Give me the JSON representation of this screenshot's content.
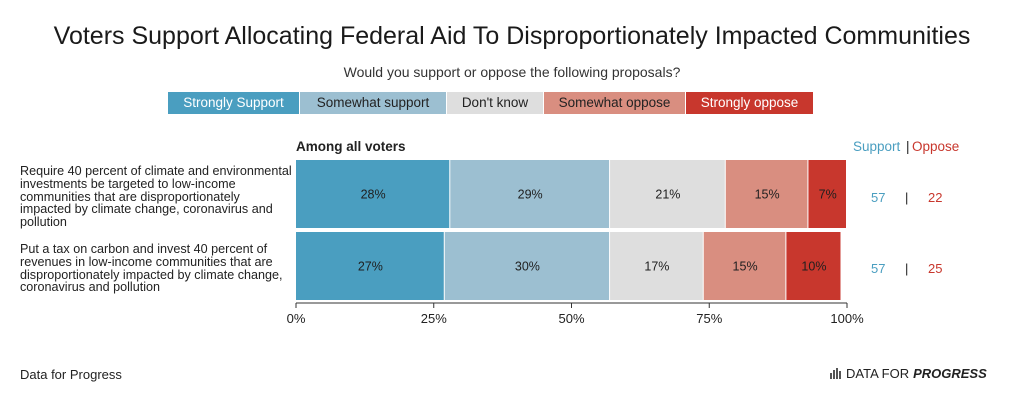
{
  "title": "Voters Support Allocating Federal Aid To Disproportionately Impacted Communities",
  "subtitle": "Would you support or oppose the following proposals?",
  "section_title": "Among all voters",
  "summary_headers": {
    "support": "Support",
    "separator": "|",
    "oppose": "Oppose"
  },
  "legend": [
    {
      "label": "Strongly Support",
      "color": "#4a9ec0"
    },
    {
      "label": "Somewhat support",
      "color": "#9cbfd1"
    },
    {
      "label": "Don't know",
      "color": "#dedede"
    },
    {
      "label": "Somewhat oppose",
      "color": "#d98e80"
    },
    {
      "label": "Strongly oppose",
      "color": "#c8372d"
    }
  ],
  "colors": {
    "support": "#4a9ec0",
    "oppose": "#c8372d",
    "axis": "#333333"
  },
  "rows": [
    {
      "label": "Require 40 percent of climate and environmental investments be targeted to low-income communities that are disproportionately impacted by climate change, coronavirus and pollution",
      "support": "57",
      "oppose": "22"
    },
    {
      "label": "Put a tax on carbon and invest 40 percent of revenues in low-income communities that are disproportionately impacted by climate change, coronavirus and pollution",
      "support": "57",
      "oppose": "25"
    }
  ],
  "source": "Data for Progress",
  "brand": {
    "prefix": "DATA FOR",
    "emphasis": "PROGRESS"
  },
  "chart_data": {
    "type": "bar",
    "orientation": "horizontal",
    "stacked": true,
    "title": "Voters Support Allocating Federal Aid To Disproportionately Impacted Communities",
    "subtitle": "Would you support or oppose the following proposals?",
    "categories": [
      "Require 40 percent of climate and environmental investments be targeted to low-income communities that are disproportionately impacted by climate change, coronavirus and pollution",
      "Put a tax on carbon and invest 40 percent of revenues in low-income communities that are disproportionately impacted by climate change, coronavirus and pollution"
    ],
    "series": [
      {
        "name": "Strongly Support",
        "values": [
          28,
          27
        ],
        "labels": [
          "28%",
          "27%"
        ]
      },
      {
        "name": "Somewhat support",
        "values": [
          29,
          30
        ],
        "labels": [
          "29%",
          "30%"
        ]
      },
      {
        "name": "Don't know",
        "values": [
          21,
          17
        ],
        "labels": [
          "21%",
          "17%"
        ]
      },
      {
        "name": "Somewhat oppose",
        "values": [
          15,
          15
        ],
        "labels": [
          "15%",
          "15%"
        ]
      },
      {
        "name": "Strongly oppose",
        "values": [
          7,
          10
        ],
        "labels": [
          "7%",
          "10%"
        ]
      }
    ],
    "xlim": [
      0,
      100
    ],
    "xticks": [
      "0%",
      "25%",
      "50%",
      "75%",
      "100%"
    ],
    "legend_position": "top",
    "grid": false
  }
}
